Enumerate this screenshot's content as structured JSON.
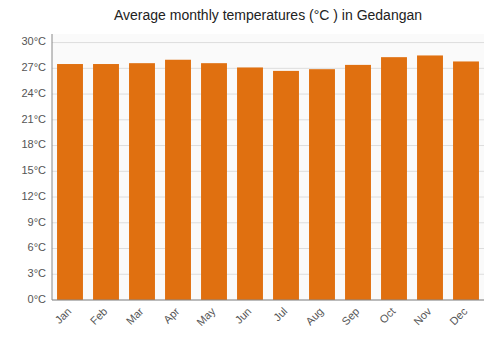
{
  "chart_data": {
    "type": "bar",
    "title": "Average monthly temperatures (°C ) in Gedangan",
    "categories": [
      "Jan",
      "Feb",
      "Mar",
      "Apr",
      "May",
      "Jun",
      "Jul",
      "Aug",
      "Sep",
      "Oct",
      "Nov",
      "Dec"
    ],
    "values": [
      27.5,
      27.5,
      27.6,
      28.0,
      27.6,
      27.1,
      26.7,
      26.9,
      27.4,
      28.3,
      28.5,
      27.8
    ],
    "color": "#E07010",
    "ylim": [
      0,
      31
    ],
    "yticks": [
      {
        "value": 0,
        "label": "0°C"
      },
      {
        "value": 3,
        "label": "3°C"
      },
      {
        "value": 6,
        "label": "6°C"
      },
      {
        "value": 9,
        "label": "9°C"
      },
      {
        "value": 12,
        "label": "12°C"
      },
      {
        "value": 15,
        "label": "15°C"
      },
      {
        "value": 18,
        "label": "18°C"
      },
      {
        "value": 21,
        "label": "21°C"
      },
      {
        "value": 24,
        "label": "24°C"
      },
      {
        "value": 27,
        "label": "27°C"
      },
      {
        "value": 30,
        "label": "30°C"
      }
    ],
    "grid": true
  }
}
